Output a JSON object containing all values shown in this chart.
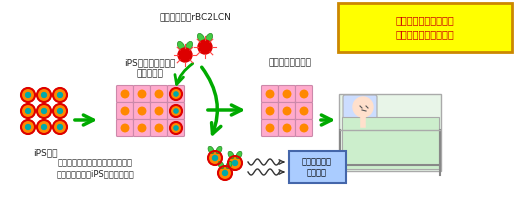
{
  "bg_color": "#ffffff",
  "title_box_color": "#ffff00",
  "title_box_border": "#cc8800",
  "title_text": "腫瘍化の危険性のない\n安全な細胞治療に貢献",
  "title_text_color": "#cc0000",
  "label_ips": "iPS細胞",
  "label_mixed": "iPS細胞が残存した\n移植用細胞",
  "label_pure": "純粋な移植用細胞",
  "label_rbc": "蛍光標識したrBC2LCN",
  "label_detect": "蛍光を検出して移植用細胞から、\n腫瘍形成細胞（iPS細胞）を除去",
  "label_flow": "フローサイト\nメーター",
  "arrow_color": "#00aa00",
  "cell_orange": "#ff8800",
  "cell_red": "#dd0000",
  "cell_teal": "#00aaaa",
  "cell_pink_bg": "#ffaacc",
  "cell_green": "#00bb00"
}
